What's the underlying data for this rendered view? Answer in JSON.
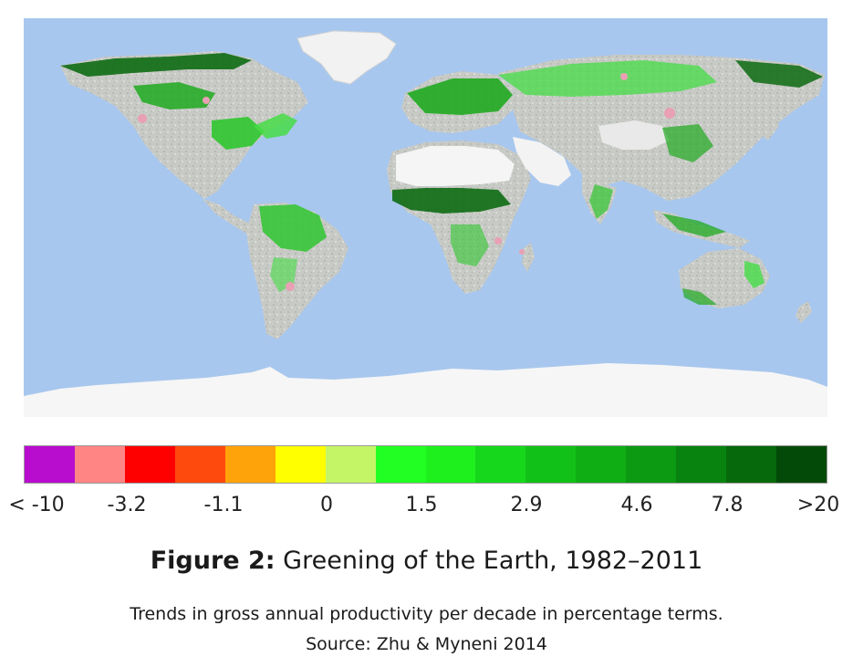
{
  "map": {
    "ocean_color": "#a8c7ee",
    "ice_color": "#f4f4f4",
    "land_base_color": "#c9cbc7",
    "green_light": "#46dc46",
    "green_mid": "#1faa1f",
    "green_dark": "#0d6b12",
    "pink": "#e9a0b4"
  },
  "legend": {
    "colors": [
      "#b80ccf",
      "#ff8484",
      "#ff0000",
      "#ff4a0d",
      "#ffa30a",
      "#ffff00",
      "#c4f566",
      "#22ff22",
      "#1ef01e",
      "#16d71c",
      "#12c118",
      "#0fae15",
      "#0c9a12",
      "#09830f",
      "#06690c",
      "#034a08"
    ],
    "labels": [
      "< -10",
      "-3.2",
      "-1.1",
      "0",
      "1.5",
      "2.9",
      "4.6",
      "7.8",
      ">20"
    ]
  },
  "figure": {
    "label": "Figure 2:",
    "title": "Greening of the Earth, 1982–2011",
    "caption_line1": "Trends in gross annual productivity per decade in percentage terms.",
    "caption_line2": "Source: Zhu & Myneni 2014"
  }
}
